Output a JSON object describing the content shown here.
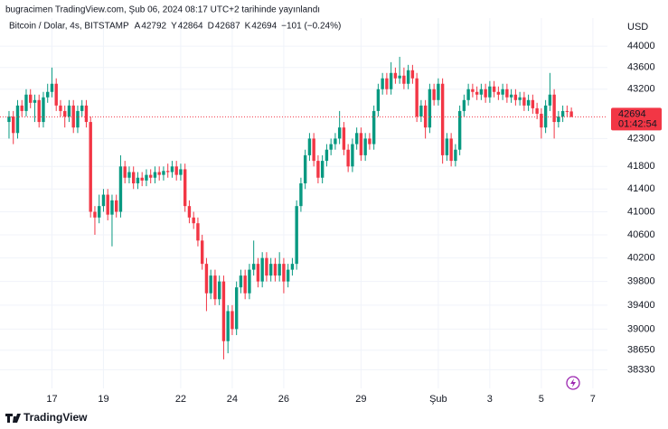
{
  "header": {
    "published": "bugracimen TradingView.com, Şub 06, 2024 08:17 UTC+2 tarihinde yayınlandı"
  },
  "chart_data": {
    "type": "candlestick",
    "title": "Bitcoin / Dolar, 4s, BITSTAMP",
    "legend_labels": [
      "A",
      "Y",
      "D",
      "K"
    ],
    "legend_values": [
      42792,
      42864,
      42687,
      42694
    ],
    "change": "−101 (−0.24%)",
    "currency": "USD",
    "series": [
      {
        "open": [
          42600,
          42700,
          42400,
          42900,
          42800,
          43100,
          42950,
          43000,
          42600,
          43050,
          43150,
          43300,
          42900,
          42800,
          42700,
          42900,
          42500,
          42800,
          42900,
          42600,
          41000,
          40900,
          41100,
          41300,
          40950,
          41200,
          41000,
          41800,
          41600,
          41700,
          41500,
          41600,
          41550,
          41650,
          41600,
          41700,
          41650,
          41720,
          41700,
          41800,
          41650,
          41750,
          41100,
          40900,
          40800,
          40500,
          40100,
          39600,
          39900,
          39500,
          39800,
          38800,
          39300,
          39000,
          39700,
          39900,
          39600,
          40000,
          40100,
          39800,
          40200,
          39900,
          40100,
          39900,
          40100,
          39800,
          40000,
          40100,
          41100,
          41500,
          42000,
          42300,
          41900,
          41600,
          41900,
          42100,
          42200,
          42300,
          42500,
          42100,
          41800,
          42200,
          42400,
          42000,
          42300,
          42200,
          42800,
          43200,
          43400,
          43200,
          43500,
          43400,
          43450,
          43300,
          43550,
          43400,
          42700,
          42900,
          42500,
          43200,
          43000,
          43300,
          42000,
          42300,
          41900,
          42100,
          42800,
          43000,
          43200,
          43150,
          43100,
          43200,
          43050,
          43250,
          43150,
          43100,
          43200,
          43050,
          43100,
          43000,
          43050,
          42900,
          43000,
          42850,
          42750,
          42500,
          42900,
          43100,
          42600,
          42700,
          42800,
          42792
        ],
        "high": [
          42800,
          42800,
          43000,
          43000,
          43200,
          43200,
          43100,
          43100,
          43150,
          43300,
          43600,
          43400,
          43000,
          42900,
          43000,
          43000,
          42900,
          43000,
          43000,
          42700,
          41100,
          41300,
          41400,
          41400,
          41300,
          41300,
          42000,
          41900,
          41800,
          41800,
          41700,
          41700,
          41750,
          41750,
          41800,
          41800,
          41800,
          41850,
          41900,
          41900,
          41850,
          41850,
          41200,
          41000,
          40900,
          40600,
          40200,
          40000,
          40000,
          39900,
          39900,
          39400,
          39400,
          39800,
          40000,
          40000,
          40100,
          40500,
          40200,
          40300,
          40300,
          40200,
          40200,
          40300,
          40200,
          40100,
          40200,
          41200,
          41600,
          42100,
          42400,
          42400,
          42000,
          42000,
          42200,
          42300,
          42400,
          42800,
          42600,
          42200,
          42300,
          42500,
          42500,
          42400,
          42400,
          42900,
          43300,
          43500,
          43500,
          43700,
          43600,
          43800,
          43600,
          43650,
          43650,
          43500,
          43000,
          43000,
          43300,
          43300,
          43400,
          43400,
          42400,
          42400,
          42200,
          42900,
          43100,
          43300,
          43300,
          43250,
          43300,
          43300,
          43350,
          43350,
          43250,
          43300,
          43300,
          43200,
          43200,
          43150,
          43150,
          43100,
          43100,
          42950,
          42850,
          43000,
          43500,
          43200,
          42800,
          42900,
          42900,
          42864
        ],
        "low": [
          42300,
          42200,
          42300,
          42700,
          42700,
          42850,
          42600,
          42500,
          42500,
          42950,
          43050,
          42800,
          42700,
          42500,
          42600,
          42400,
          42400,
          42700,
          42500,
          40900,
          40600,
          40800,
          41000,
          40850,
          40400,
          40900,
          40900,
          41500,
          41500,
          41400,
          41400,
          41450,
          41450,
          41500,
          41500,
          41550,
          41550,
          41600,
          41600,
          41550,
          41550,
          41000,
          40800,
          40700,
          40400,
          40000,
          39300,
          39500,
          39400,
          39400,
          38500,
          38600,
          38900,
          38900,
          39600,
          39500,
          39500,
          39900,
          39700,
          39700,
          39800,
          39800,
          39800,
          39800,
          39600,
          39700,
          39900,
          40000,
          41000,
          41400,
          41900,
          41800,
          41500,
          41500,
          41800,
          42000,
          42100,
          42200,
          42000,
          41700,
          41700,
          42100,
          41900,
          41900,
          42100,
          42100,
          42700,
          43100,
          43100,
          43100,
          43300,
          43300,
          43200,
          43200,
          43300,
          42600,
          42600,
          42300,
          42400,
          42900,
          42900,
          41850,
          41900,
          41800,
          41800,
          42000,
          42700,
          42900,
          43050,
          43000,
          43000,
          42950,
          42950,
          43050,
          43000,
          43000,
          42950,
          42950,
          42900,
          42900,
          42800,
          42800,
          42750,
          42650,
          42300,
          42400,
          42800,
          42300,
          42500,
          42600,
          42700,
          42687
        ],
        "close": [
          42700,
          42400,
          42900,
          42800,
          43100,
          42950,
          43000,
          42600,
          43050,
          43150,
          43300,
          42900,
          42800,
          42700,
          42900,
          42500,
          42800,
          42900,
          42600,
          41000,
          40900,
          41100,
          41300,
          40950,
          41200,
          41000,
          41800,
          41600,
          41700,
          41500,
          41600,
          41550,
          41650,
          41600,
          41700,
          41650,
          41720,
          41700,
          41800,
          41650,
          41750,
          41100,
          40900,
          40800,
          40500,
          40100,
          39600,
          39900,
          39500,
          39800,
          38800,
          39300,
          39000,
          39700,
          39900,
          39600,
          40000,
          40100,
          39800,
          40200,
          39900,
          40100,
          39900,
          40100,
          39800,
          40000,
          40100,
          41100,
          41500,
          42000,
          42300,
          41900,
          41600,
          41900,
          42100,
          42200,
          42300,
          42500,
          42100,
          41800,
          42200,
          42400,
          42000,
          42300,
          42200,
          42800,
          43200,
          43400,
          43200,
          43500,
          43400,
          43450,
          43300,
          43550,
          43400,
          42700,
          42900,
          42500,
          43200,
          43000,
          43300,
          42000,
          42300,
          41900,
          42100,
          42800,
          43000,
          43200,
          43150,
          43100,
          43200,
          43050,
          43250,
          43150,
          43100,
          43200,
          43050,
          43100,
          43000,
          43050,
          42900,
          43000,
          42850,
          42750,
          42500,
          42900,
          43100,
          42600,
          42700,
          42800,
          42792,
          42694
        ]
      }
    ],
    "up_color": "#089981",
    "down_color": "#f23645",
    "log_scale": true,
    "grid": true,
    "ylim": [
      38100,
      44530
    ],
    "yticks": [
      44000,
      43600,
      43200,
      42300,
      41800,
      41400,
      41000,
      40600,
      40200,
      39800,
      39400,
      39000,
      38650,
      38330
    ],
    "xlim": [
      -2.1,
      139.4
    ],
    "xticks": [
      {
        "value": 10,
        "label": "17"
      },
      {
        "value": 22,
        "label": "19"
      },
      {
        "value": 40,
        "label": "22"
      },
      {
        "value": 52,
        "label": "24"
      },
      {
        "value": 64,
        "label": "26"
      },
      {
        "value": 82,
        "label": "29"
      },
      {
        "value": 100,
        "label": "Şub"
      },
      {
        "value": 112,
        "label": "3"
      },
      {
        "value": 124,
        "label": "5"
      },
      {
        "value": 136,
        "label": "7"
      }
    ],
    "last_price": 42694,
    "countdown": "01:42:54"
  },
  "footer": {
    "brand": "TradingView"
  }
}
